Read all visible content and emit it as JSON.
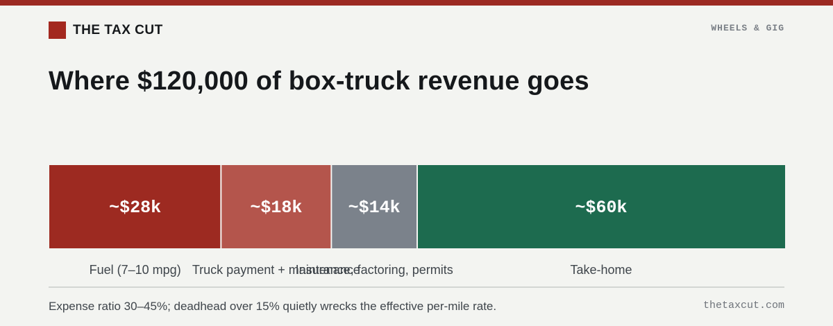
{
  "header": {
    "brand": "THE TAX CUT",
    "section": "WHEELS & GIG"
  },
  "headline": "Where $120,000 of box-truck revenue goes",
  "chart_data": {
    "type": "bar",
    "orientation": "horizontal-stacked",
    "total": 120000,
    "segments": [
      {
        "label": "Fuel (7–10 mpg)",
        "value": 28000,
        "value_label": "~$28k",
        "color": "#9d2a21"
      },
      {
        "label": "Truck payment + maintenance",
        "value": 18000,
        "value_label": "~$18k",
        "color": "#b4554c"
      },
      {
        "label": "Insurance, factoring, permits",
        "value": 14000,
        "value_label": "~$14k",
        "color": "#7b828b"
      },
      {
        "label": "Take-home",
        "value": 60000,
        "value_label": "~$60k",
        "color": "#1d6b4f"
      }
    ]
  },
  "footer": {
    "note": "Expense ratio 30–45%; deadhead over 15% quietly wrecks the effective per-mile rate.",
    "site": "thetaxcut.com"
  }
}
